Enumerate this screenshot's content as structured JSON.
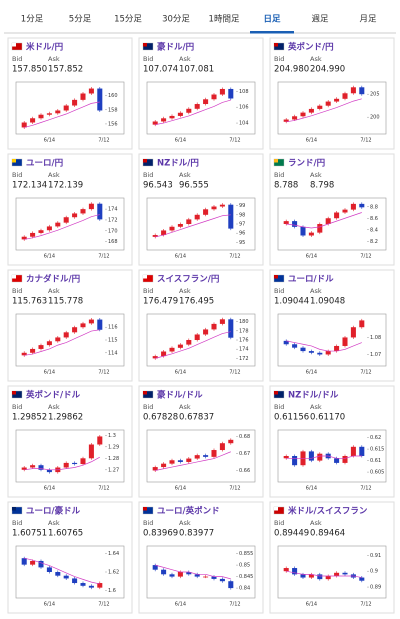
{
  "tabs": [
    "1分足",
    "5分足",
    "15分足",
    "30分足",
    "1時間足",
    "日足",
    "週足",
    "月足"
  ],
  "active_tab": 5,
  "cards": [
    {
      "pair": "米ドル/円",
      "bid_label": "Bid",
      "ask_label": "Ask",
      "bid": "157.850",
      "ask": "157.852",
      "chart": {
        "ylim": [
          155,
          161.5
        ],
        "yticks": [
          160,
          158,
          156
        ],
        "x_labels": [
          "6/14",
          "7/12"
        ],
        "closes": [
          156.2,
          156.8,
          157.3,
          157.5,
          157.9,
          158.6,
          159.4,
          160.3,
          161.0,
          157.9
        ],
        "ma": [
          155.5,
          155.8,
          156.2,
          156.6,
          157.0,
          157.4,
          157.9,
          158.4,
          158.9,
          159.1
        ]
      }
    },
    {
      "pair": "豪ドル/円",
      "bid_label": "Bid",
      "ask_label": "Ask",
      "bid": "107.074",
      "ask": "107.081",
      "chart": {
        "ylim": [
          103,
          108.8
        ],
        "yticks": [
          108,
          106,
          104
        ],
        "x_labels": [
          "6/14",
          "7/12"
        ],
        "closes": [
          104.2,
          104.6,
          104.9,
          105.3,
          105.8,
          106.4,
          107.0,
          107.6,
          108.3,
          107.1
        ],
        "ma": [
          103.8,
          104.0,
          104.3,
          104.6,
          104.9,
          105.3,
          105.7,
          106.1,
          106.6,
          106.9
        ]
      }
    },
    {
      "pair": "英ポンド/円",
      "bid_label": "Bid",
      "ask_label": "Ask",
      "bid": "204.980",
      "ask": "204.990",
      "chart": {
        "ylim": [
          197,
          207
        ],
        "yticks": [
          205,
          200
        ],
        "x_labels": [
          "6/14",
          "7/12"
        ],
        "closes": [
          199.5,
          200.2,
          201.0,
          201.8,
          202.5,
          203.4,
          204.0,
          205.2,
          206.5,
          205.0
        ],
        "ma": [
          199.0,
          199.3,
          199.8,
          200.3,
          200.9,
          201.5,
          202.1,
          202.8,
          203.5,
          204.0
        ]
      }
    },
    {
      "pair": "ユーロ/円",
      "bid_label": "Bid",
      "ask_label": "Ask",
      "bid": "172.134",
      "ask": "172.139",
      "chart": {
        "ylim": [
          167,
          175.5
        ],
        "yticks": [
          174,
          172,
          170,
          168
        ],
        "x_labels": [
          "6/14",
          "7/12"
        ],
        "closes": [
          168.9,
          169.6,
          170.1,
          170.8,
          171.5,
          172.5,
          173.2,
          174.0,
          175.0,
          172.1
        ],
        "ma": [
          168.4,
          168.7,
          169.1,
          169.6,
          170.1,
          170.7,
          171.3,
          171.9,
          172.6,
          173.0
        ]
      }
    },
    {
      "pair": "NZドル/円",
      "bid_label": "Bid",
      "ask_label": "Ask",
      "bid": "96.543",
      "ask": "96.555",
      "chart": {
        "ylim": [
          94.5,
          99.5
        ],
        "yticks": [
          99,
          98,
          97,
          96,
          95
        ],
        "x_labels": [
          "6/14",
          "7/12"
        ],
        "closes": [
          95.8,
          96.3,
          96.7,
          97.0,
          97.5,
          98.0,
          98.6,
          98.9,
          99.1,
          96.5
        ],
        "ma": [
          95.6,
          95.8,
          96.1,
          96.4,
          96.7,
          97.0,
          97.3,
          97.6,
          97.9,
          98.0
        ]
      }
    },
    {
      "pair": "ランド/円",
      "bid_label": "Bid",
      "ask_label": "Ask",
      "bid": "8.788",
      "ask": "8.798",
      "chart": {
        "ylim": [
          8.1,
          8.9
        ],
        "yticks": [
          8.8,
          8.6,
          8.4,
          8.2
        ],
        "x_labels": [
          "6/14",
          "7/12"
        ],
        "closes": [
          8.55,
          8.45,
          8.3,
          8.35,
          8.5,
          8.6,
          8.7,
          8.75,
          8.85,
          8.79
        ],
        "ma": [
          8.5,
          8.48,
          8.45,
          8.43,
          8.45,
          8.5,
          8.55,
          8.6,
          8.65,
          8.7
        ]
      }
    },
    {
      "pair": "カナダドル/円",
      "bid_label": "Bid",
      "ask_label": "Ask",
      "bid": "115.763",
      "ask": "115.778",
      "chart": {
        "ylim": [
          113.2,
          116.8
        ],
        "yticks": [
          116,
          115,
          114
        ],
        "x_labels": [
          "6/14",
          "7/12"
        ],
        "closes": [
          114.0,
          114.3,
          114.6,
          114.9,
          115.2,
          115.6,
          116.0,
          116.3,
          116.6,
          115.8
        ],
        "ma": [
          113.8,
          113.9,
          114.1,
          114.3,
          114.6,
          114.8,
          115.1,
          115.4,
          115.7,
          115.8
        ]
      }
    },
    {
      "pair": "スイスフラン/円",
      "bid_label": "Bid",
      "ask_label": "Ask",
      "bid": "176.479",
      "ask": "176.495",
      "chart": {
        "ylim": [
          171,
          181
        ],
        "yticks": [
          180,
          178,
          176,
          174,
          172
        ],
        "x_labels": [
          "6/14",
          "7/12"
        ],
        "closes": [
          172.5,
          173.5,
          174.3,
          175.0,
          176.0,
          177.2,
          178.3,
          179.5,
          180.5,
          176.5
        ],
        "ma": [
          172.0,
          172.5,
          173.0,
          173.6,
          174.2,
          175.0,
          175.8,
          176.6,
          177.4,
          177.8
        ]
      }
    },
    {
      "pair": "ユーロ/ドル",
      "bid_label": "Bid",
      "ask_label": "Ask",
      "bid": "1.09044",
      "ask": "1.09048",
      "chart": {
        "ylim": [
          1.065,
          1.092
        ],
        "yticks": [
          1.08,
          1.07
        ],
        "x_labels": [
          "6/14",
          "7/12"
        ],
        "closes": [
          1.076,
          1.074,
          1.072,
          1.071,
          1.07,
          1.072,
          1.075,
          1.08,
          1.086,
          1.09
        ],
        "ma": [
          1.078,
          1.077,
          1.076,
          1.075,
          1.073,
          1.072,
          1.072,
          1.073,
          1.075,
          1.077
        ]
      }
    },
    {
      "pair": "英ポンド/ドル",
      "bid_label": "Bid",
      "ask_label": "Ask",
      "bid": "1.29852",
      "ask": "1.29862",
      "chart": {
        "ylim": [
          1.262,
          1.302
        ],
        "yticks": [
          1.3,
          1.29,
          1.28,
          1.27
        ],
        "x_labels": [
          "6/14",
          "7/12"
        ],
        "closes": [
          1.272,
          1.274,
          1.27,
          1.268,
          1.272,
          1.276,
          1.275,
          1.28,
          1.292,
          1.299
        ],
        "ma": [
          1.27,
          1.271,
          1.271,
          1.27,
          1.27,
          1.271,
          1.272,
          1.274,
          1.277,
          1.281
        ]
      }
    },
    {
      "pair": "豪ドル/ドル",
      "bid_label": "Bid",
      "ask_label": "Ask",
      "bid": "0.67828",
      "ask": "0.67837",
      "chart": {
        "ylim": [
          0.655,
          0.682
        ],
        "yticks": [
          0.68,
          0.67,
          0.66
        ],
        "x_labels": [
          "6/14",
          "7/12"
        ],
        "closes": [
          0.662,
          0.664,
          0.666,
          0.665,
          0.667,
          0.669,
          0.668,
          0.672,
          0.676,
          0.678
        ],
        "ma": [
          0.66,
          0.661,
          0.662,
          0.663,
          0.664,
          0.665,
          0.666,
          0.667,
          0.669,
          0.671
        ]
      }
    },
    {
      "pair": "NZドル/ドル",
      "bid_label": "Bid",
      "ask_label": "Ask",
      "bid": "0.61156",
      "ask": "0.61170",
      "chart": {
        "ylim": [
          0.602,
          0.622
        ],
        "yticks": [
          0.62,
          0.615,
          0.61,
          0.605
        ],
        "x_labels": [
          "6/14",
          "7/12"
        ],
        "closes": [
          0.612,
          0.608,
          0.614,
          0.61,
          0.613,
          0.611,
          0.609,
          0.612,
          0.616,
          0.612
        ],
        "ma": [
          0.611,
          0.611,
          0.611,
          0.611,
          0.612,
          0.612,
          0.611,
          0.611,
          0.612,
          0.612
        ]
      }
    },
    {
      "pair": "ユーロ/豪ドル",
      "bid_label": "Bid",
      "ask_label": "Ask",
      "bid": "1.60751",
      "ask": "1.60765",
      "chart": {
        "ylim": [
          1.595,
          1.645
        ],
        "yticks": [
          1.64,
          1.62,
          1.6
        ],
        "x_labels": [
          "6/14",
          "7/12"
        ],
        "closes": [
          1.628,
          1.632,
          1.625,
          1.62,
          1.616,
          1.613,
          1.608,
          1.605,
          1.603,
          1.608
        ],
        "ma": [
          1.635,
          1.633,
          1.63,
          1.627,
          1.623,
          1.619,
          1.615,
          1.612,
          1.609,
          1.607
        ]
      }
    },
    {
      "pair": "ユーロ/英ポンド",
      "bid_label": "Bid",
      "ask_label": "Ask",
      "bid": "0.83969",
      "ask": "0.83977",
      "chart": {
        "ylim": [
          0.837,
          0.857
        ],
        "yticks": [
          0.855,
          0.85,
          0.845,
          0.84
        ],
        "x_labels": [
          "6/14",
          "7/12"
        ],
        "closes": [
          0.848,
          0.846,
          0.845,
          0.847,
          0.846,
          0.845,
          0.845,
          0.844,
          0.843,
          0.84
        ],
        "ma": [
          0.85,
          0.849,
          0.848,
          0.847,
          0.847,
          0.846,
          0.846,
          0.845,
          0.845,
          0.844
        ]
      }
    },
    {
      "pair": "米ドル/スイスフラン",
      "bid_label": "Bid",
      "ask_label": "Ask",
      "bid": "0.89449",
      "ask": "0.89464",
      "chart": {
        "ylim": [
          0.885,
          0.914
        ],
        "yticks": [
          0.91,
          0.9,
          0.89
        ],
        "x_labels": [
          "6/14",
          "7/12"
        ],
        "closes": [
          0.902,
          0.898,
          0.896,
          0.898,
          0.895,
          0.897,
          0.899,
          0.898,
          0.896,
          0.894
        ],
        "ma": [
          0.9,
          0.899,
          0.898,
          0.898,
          0.897,
          0.897,
          0.897,
          0.897,
          0.897,
          0.896
        ]
      }
    }
  ]
}
